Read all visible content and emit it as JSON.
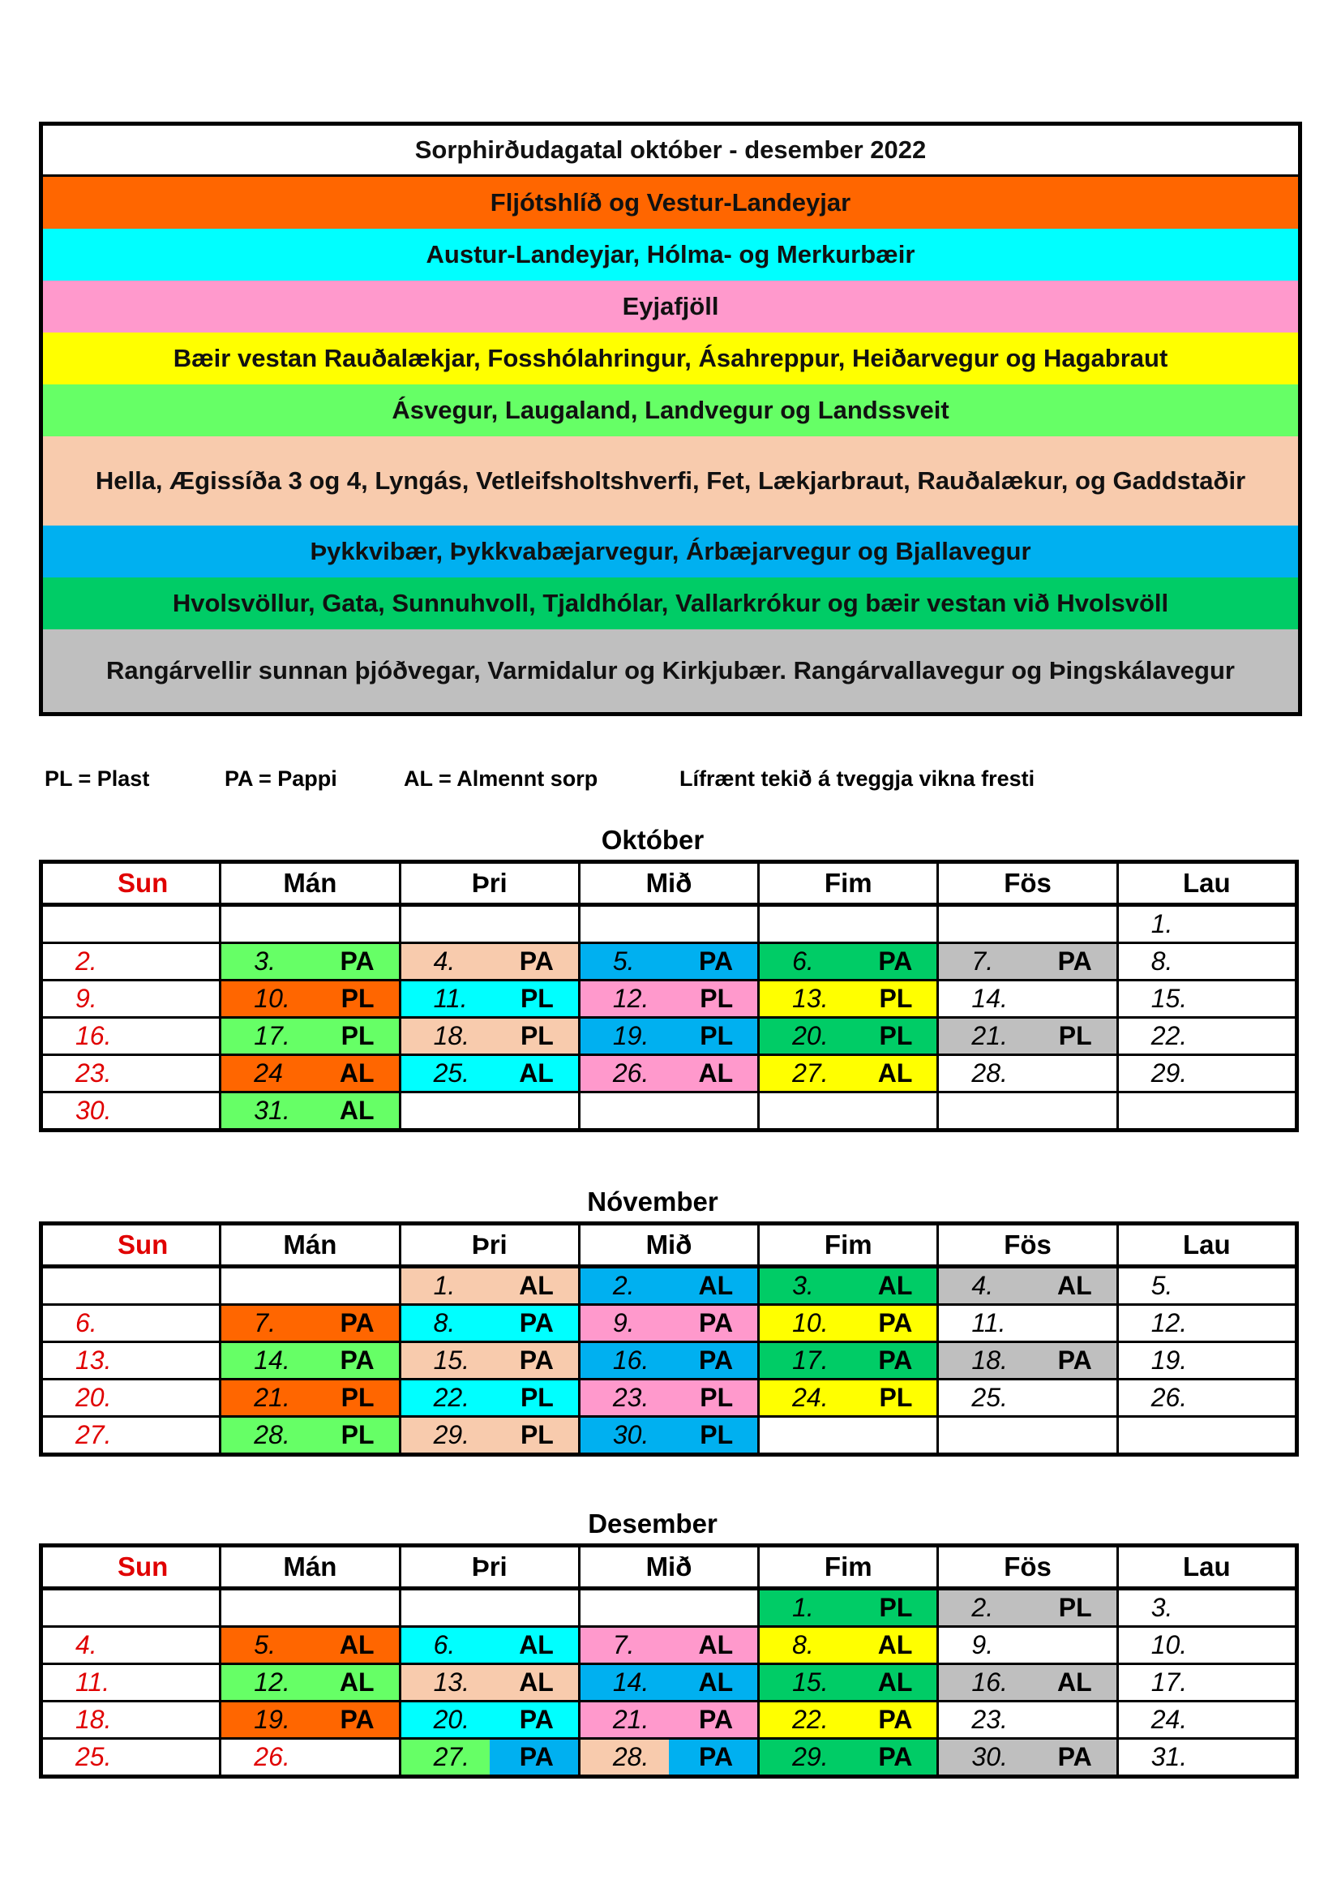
{
  "legend": {
    "title": "Sorphirðudagatal október - desember 2022",
    "areas": [
      {
        "label": "Fljótshlíð og Vestur-Landeyjar",
        "color": "#FF6600"
      },
      {
        "label": "Austur-Landeyjar, Hólma- og Merkurbæir",
        "color": "#00FFFF"
      },
      {
        "label": "Eyjafjöll",
        "color": "#FF99CC"
      },
      {
        "label": "Bæir vestan Rauðalækjar, Fosshólahringur, Ásahreppur, Heiðarvegur og Hagabraut",
        "color": "#FFFF00"
      },
      {
        "label": "Ásvegur, Laugaland, Landvegur og Landssveit",
        "color": "#66FF66"
      },
      {
        "label": "Hella, Ægissíða 3 og 4, Lyngás, Vetleifsholtshverfi, Fet, Lækjarbraut, Rauðalækur, og Gaddstaðir",
        "color": "#F8CBAD"
      },
      {
        "label": "Þykkvibær, Þykkvabæjarvegur, Árbæjarvegur og Bjallavegur",
        "color": "#00B0F0"
      },
      {
        "label": "Hvolsvöllur, Gata, Sunnuhvoll, Tjaldhólar, Vallarkrókur og bæir vestan við Hvolsvöll",
        "color": "#00CC66"
      },
      {
        "label": "Rangárvellir sunnan þjóðvegar, Varmidalur og Kirkjubær. Rangárvallavegur og Þingskálavegur",
        "color": "#BFBFBF"
      }
    ]
  },
  "key": [
    "PL = Plast",
    "PA = Pappi",
    "AL = Almennt sorp",
    "Lífrænt tekið á tveggja vikna fresti"
  ],
  "weekdays": [
    "Sun",
    "Mán",
    "Þri",
    "Mið",
    "Fim",
    "Fös",
    "Lau"
  ],
  "colors": {
    "o": "#FF6600",
    "c": "#00FFFF",
    "p": "#FF99CC",
    "y": "#FFFF00",
    "lg": "#66FF66",
    "pe": "#F8CBAD",
    "b": "#00B0F0",
    "g": "#00CC66",
    "gr": "#BFBFBF"
  },
  "months": [
    {
      "name": "Október",
      "rows": [
        [
          {},
          {},
          {},
          {},
          {},
          {},
          {
            "d": "1."
          }
        ],
        [
          {
            "d": "2."
          },
          {
            "d": "3.",
            "t": "PA",
            "c": "lg"
          },
          {
            "d": "4.",
            "t": "PA",
            "c": "pe"
          },
          {
            "d": "5.",
            "t": "PA",
            "c": "b"
          },
          {
            "d": "6.",
            "t": "PA",
            "c": "g"
          },
          {
            "d": "7.",
            "t": "PA",
            "c": "gr"
          },
          {
            "d": "8."
          }
        ],
        [
          {
            "d": "9."
          },
          {
            "d": "10.",
            "t": "PL",
            "c": "o"
          },
          {
            "d": "11.",
            "t": "PL",
            "c": "c"
          },
          {
            "d": "12.",
            "t": "PL",
            "c": "p"
          },
          {
            "d": "13.",
            "t": "PL",
            "c": "y"
          },
          {
            "d": "14."
          },
          {
            "d": "15."
          }
        ],
        [
          {
            "d": "16."
          },
          {
            "d": "17.",
            "t": "PL",
            "c": "lg"
          },
          {
            "d": "18.",
            "t": "PL",
            "c": "pe"
          },
          {
            "d": "19.",
            "t": "PL",
            "c": "b"
          },
          {
            "d": "20.",
            "t": "PL",
            "c": "g"
          },
          {
            "d": "21.",
            "t": "PL",
            "c": "gr"
          },
          {
            "d": "22."
          }
        ],
        [
          {
            "d": "23."
          },
          {
            "d": "24",
            "t": "AL",
            "c": "o"
          },
          {
            "d": "25.",
            "t": "AL",
            "c": "c"
          },
          {
            "d": "26.",
            "t": "AL",
            "c": "p"
          },
          {
            "d": "27.",
            "t": "AL",
            "c": "y"
          },
          {
            "d": "28."
          },
          {
            "d": "29."
          }
        ],
        [
          {
            "d": "30."
          },
          {
            "d": "31.",
            "t": "AL",
            "c": "lg"
          },
          {},
          {},
          {},
          {},
          {}
        ]
      ]
    },
    {
      "name": "Nóvember",
      "rows": [
        [
          {},
          {},
          {
            "d": "1.",
            "t": "AL",
            "c": "pe"
          },
          {
            "d": "2.",
            "t": "AL",
            "c": "b"
          },
          {
            "d": "3.",
            "t": "AL",
            "c": "g"
          },
          {
            "d": "4.",
            "t": "AL",
            "c": "gr"
          },
          {
            "d": "5."
          }
        ],
        [
          {
            "d": "6."
          },
          {
            "d": "7.",
            "t": "PA",
            "c": "o"
          },
          {
            "d": "8.",
            "t": "PA",
            "c": "c"
          },
          {
            "d": "9.",
            "t": "PA",
            "c": "p"
          },
          {
            "d": "10.",
            "t": "PA",
            "c": "y"
          },
          {
            "d": "11."
          },
          {
            "d": "12."
          }
        ],
        [
          {
            "d": "13."
          },
          {
            "d": "14.",
            "t": "PA",
            "c": "lg"
          },
          {
            "d": "15.",
            "t": "PA",
            "c": "pe"
          },
          {
            "d": "16.",
            "t": "PA",
            "c": "b"
          },
          {
            "d": "17.",
            "t": "PA",
            "c": "g"
          },
          {
            "d": "18.",
            "t": "PA",
            "c": "gr"
          },
          {
            "d": "19."
          }
        ],
        [
          {
            "d": "20."
          },
          {
            "d": "21.",
            "t": "PL",
            "c": "o"
          },
          {
            "d": "22.",
            "t": "PL",
            "c": "c"
          },
          {
            "d": "23.",
            "t": "PL",
            "c": "p"
          },
          {
            "d": "24.",
            "t": "PL",
            "c": "y"
          },
          {
            "d": "25."
          },
          {
            "d": "26."
          }
        ],
        [
          {
            "d": "27."
          },
          {
            "d": "28.",
            "t": "PL",
            "c": "lg"
          },
          {
            "d": "29.",
            "t": "PL",
            "c": "pe"
          },
          {
            "d": "30.",
            "t": "PL",
            "c": "b"
          },
          {},
          {},
          {}
        ]
      ]
    },
    {
      "name": "Desember",
      "rows": [
        [
          {},
          {},
          {},
          {},
          {
            "d": "1.",
            "t": "PL",
            "c": "g"
          },
          {
            "d": "2.",
            "t": "PL",
            "c": "gr"
          },
          {
            "d": "3."
          }
        ],
        [
          {
            "d": "4."
          },
          {
            "d": "5.",
            "t": "AL",
            "c": "o"
          },
          {
            "d": "6.",
            "t": "AL",
            "c": "c"
          },
          {
            "d": "7.",
            "t": "AL",
            "c": "p"
          },
          {
            "d": "8.",
            "t": "AL",
            "c": "y"
          },
          {
            "d": "9."
          },
          {
            "d": "10."
          }
        ],
        [
          {
            "d": "11."
          },
          {
            "d": "12.",
            "t": "AL",
            "c": "lg"
          },
          {
            "d": "13.",
            "t": "AL",
            "c": "pe"
          },
          {
            "d": "14.",
            "t": "AL",
            "c": "b"
          },
          {
            "d": "15.",
            "t": "AL",
            "c": "g"
          },
          {
            "d": "16.",
            "t": "AL",
            "c": "gr"
          },
          {
            "d": "17."
          }
        ],
        [
          {
            "d": "18."
          },
          {
            "d": "19.",
            "t": "PA",
            "c": "o"
          },
          {
            "d": "20.",
            "t": "PA",
            "c": "c"
          },
          {
            "d": "21.",
            "t": "PA",
            "c": "p"
          },
          {
            "d": "22.",
            "t": "PA",
            "c": "y"
          },
          {
            "d": "23."
          },
          {
            "d": "24."
          }
        ],
        [
          {
            "d": "25."
          },
          {
            "d": "26.",
            "red": true
          },
          {
            "d": "27.",
            "t": "PA",
            "c": "lg",
            "c2": "b"
          },
          {
            "d": "28.",
            "t": "PA",
            "c": "pe",
            "c2": "b"
          },
          {
            "d": "29.",
            "t": "PA",
            "c": "g"
          },
          {
            "d": "30.",
            "t": "PA",
            "c": "gr"
          },
          {
            "d": "31."
          }
        ]
      ]
    }
  ]
}
